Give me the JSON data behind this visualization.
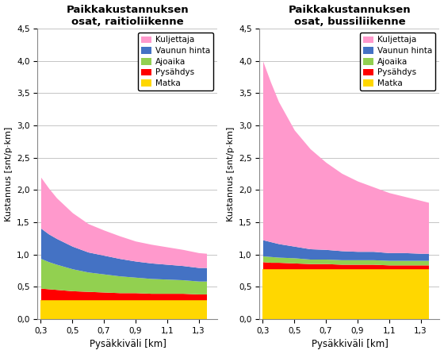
{
  "x": [
    0.3,
    0.35,
    0.4,
    0.5,
    0.6,
    0.7,
    0.8,
    0.9,
    1.0,
    1.1,
    1.2,
    1.3,
    1.35
  ],
  "raitio": {
    "title": "Paikkakustannuksen\nosat, raitioliikenne",
    "matka": [
      0.3,
      0.3,
      0.3,
      0.3,
      0.3,
      0.3,
      0.3,
      0.3,
      0.3,
      0.3,
      0.3,
      0.3,
      0.3
    ],
    "pysahdys": [
      0.18,
      0.17,
      0.16,
      0.14,
      0.13,
      0.12,
      0.11,
      0.11,
      0.1,
      0.1,
      0.1,
      0.09,
      0.09
    ],
    "ajoaika": [
      0.46,
      0.42,
      0.39,
      0.34,
      0.3,
      0.28,
      0.26,
      0.24,
      0.23,
      0.22,
      0.21,
      0.2,
      0.2
    ],
    "vaunun_hinta": [
      0.47,
      0.43,
      0.4,
      0.35,
      0.31,
      0.29,
      0.27,
      0.25,
      0.24,
      0.23,
      0.22,
      0.21,
      0.21
    ],
    "kuljettaja": [
      0.79,
      0.71,
      0.63,
      0.52,
      0.44,
      0.39,
      0.35,
      0.31,
      0.29,
      0.27,
      0.25,
      0.23,
      0.22
    ]
  },
  "bussi": {
    "title": "Paikkakustannuksen\nosat, bussiliikenne",
    "matka": [
      0.78,
      0.78,
      0.78,
      0.78,
      0.78,
      0.78,
      0.78,
      0.78,
      0.78,
      0.78,
      0.78,
      0.78,
      0.78
    ],
    "pysahdys": [
      0.11,
      0.1,
      0.1,
      0.09,
      0.08,
      0.08,
      0.07,
      0.07,
      0.07,
      0.06,
      0.06,
      0.06,
      0.06
    ],
    "ajoaika": [
      0.09,
      0.09,
      0.08,
      0.08,
      0.07,
      0.07,
      0.07,
      0.07,
      0.07,
      0.07,
      0.07,
      0.07,
      0.07
    ],
    "vaunun_hinta": [
      0.25,
      0.23,
      0.21,
      0.18,
      0.16,
      0.15,
      0.14,
      0.13,
      0.13,
      0.12,
      0.12,
      0.11,
      0.11
    ],
    "kuljettaja": [
      2.77,
      2.47,
      2.2,
      1.8,
      1.55,
      1.35,
      1.2,
      1.09,
      1.0,
      0.93,
      0.87,
      0.82,
      0.79
    ]
  },
  "colors": {
    "matka": "#FFD700",
    "pysahdys": "#FF0000",
    "ajoaika": "#92D050",
    "vaunun_hinta": "#4472C4",
    "kuljettaja": "#FF99CC"
  },
  "legend_labels": [
    "Kuljettaja",
    "Vaunun hinta",
    "Ajoaika",
    "Pysähdys",
    "Matka"
  ],
  "xlabel": "Pysäkkiväli [km]",
  "ylabel": "Kustannus [snt/p·km]",
  "ylim": [
    0.0,
    4.5
  ],
  "yticks": [
    0.0,
    0.5,
    1.0,
    1.5,
    2.0,
    2.5,
    3.0,
    3.5,
    4.0,
    4.5
  ],
  "xticks": [
    0.3,
    0.5,
    0.7,
    0.9,
    1.1,
    1.3
  ],
  "background_color": "#FFFFFF"
}
